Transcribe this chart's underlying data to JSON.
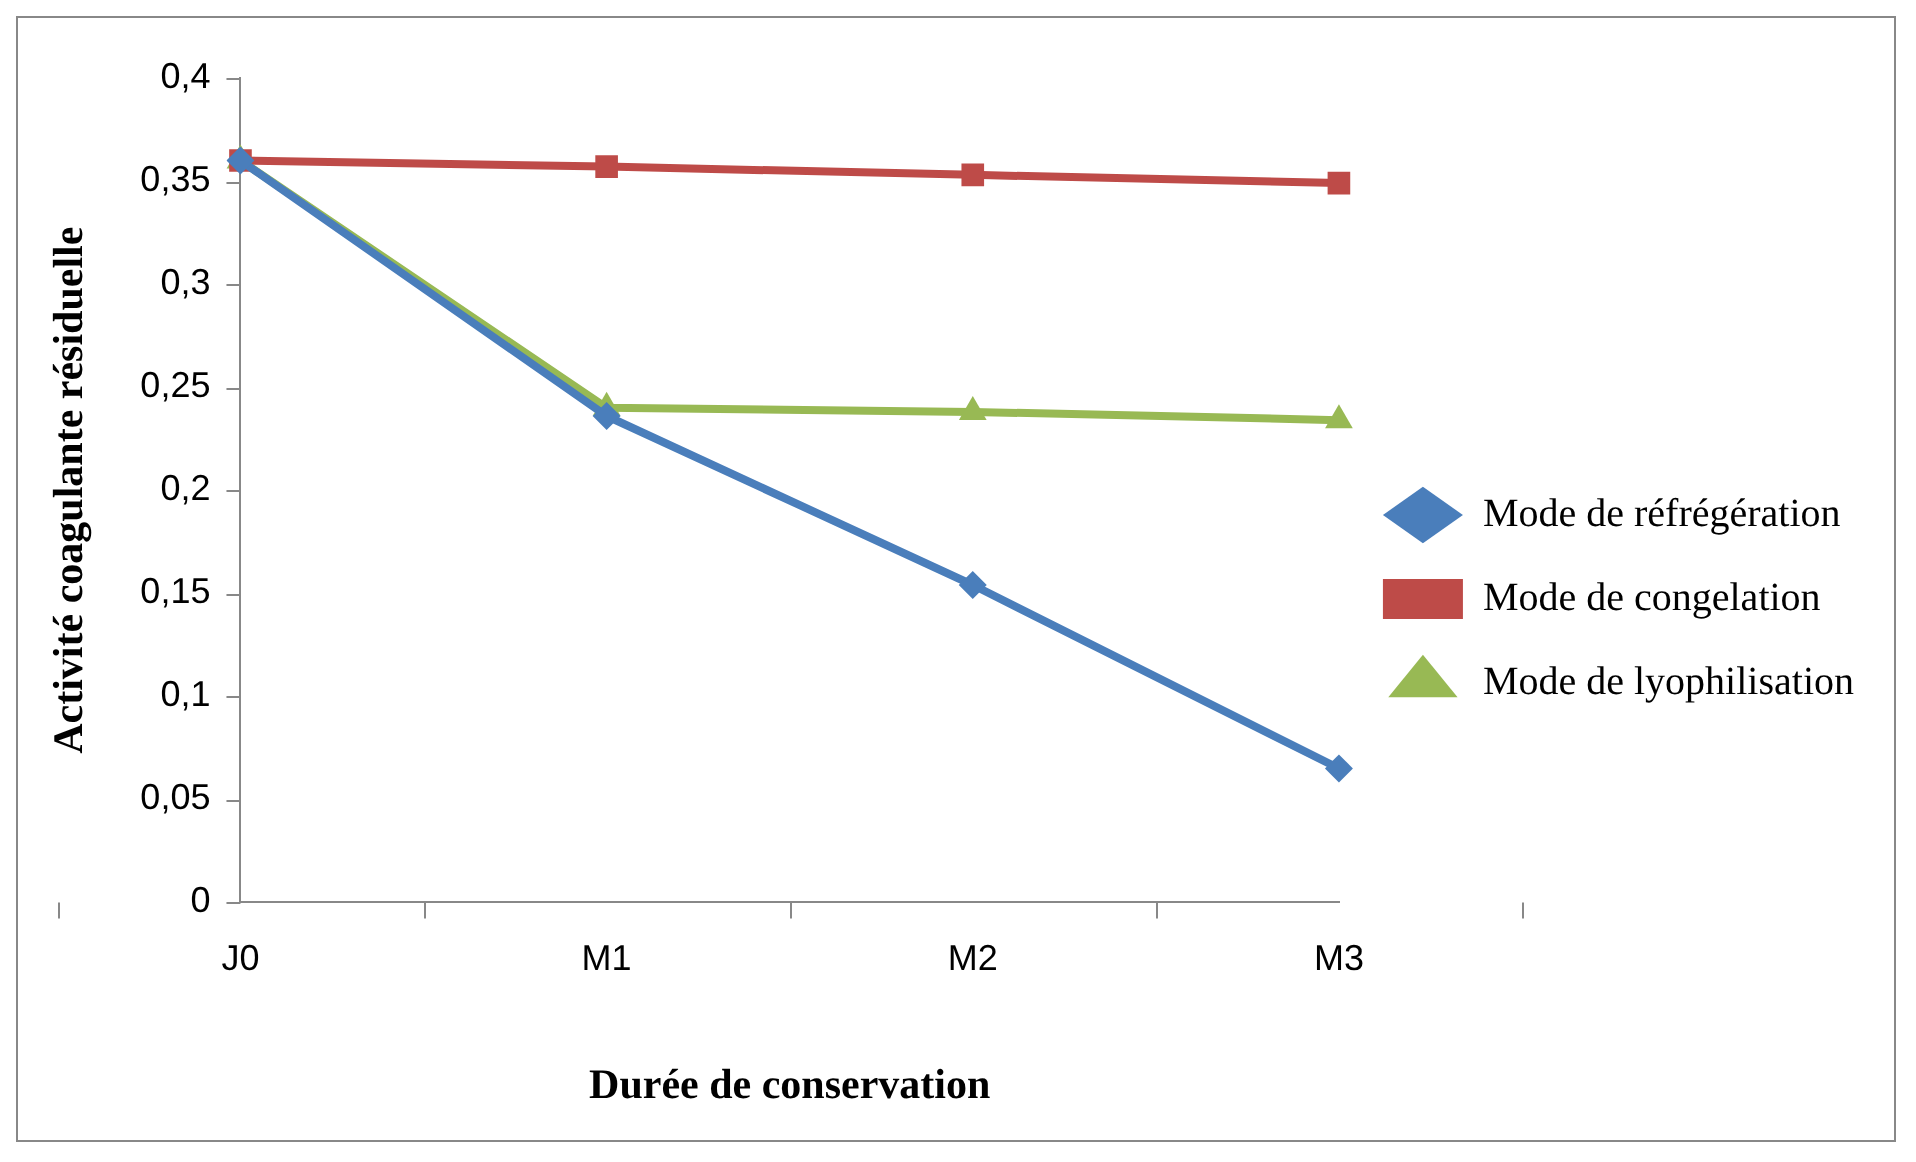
{
  "chart_data": {
    "type": "line",
    "xlabel": "Durée de conservation",
    "ylabel": "Activité coagulante résiduelle",
    "categories": [
      "J0",
      "M1",
      "M2",
      "M3"
    ],
    "series": [
      {
        "name": "Mode de réfrégération",
        "color": "#4a7ebb",
        "marker": "diamond",
        "values": [
          0.36,
          0.236,
          0.154,
          0.065
        ]
      },
      {
        "name": "Mode de congelation",
        "color": "#be4b48",
        "marker": "square",
        "values": [
          0.36,
          0.357,
          0.353,
          0.349
        ]
      },
      {
        "name": "Mode de lyophilisation",
        "color": "#98b954",
        "marker": "triangle",
        "values": [
          0.36,
          0.24,
          0.238,
          0.234
        ]
      }
    ],
    "ylim": [
      0,
      0.4
    ],
    "yticks": [
      0,
      {
        "value": 0.05,
        "label": "0,05"
      },
      {
        "value": 0.1,
        "label": "0,1"
      },
      {
        "value": 0.15,
        "label": "0,15"
      },
      {
        "value": 0.2,
        "label": "0,2"
      },
      {
        "value": 0.25,
        "label": "0,25"
      },
      {
        "value": 0.3,
        "label": "0,3"
      },
      {
        "value": 0.35,
        "label": "0,35"
      },
      {
        "value": 0.4,
        "label": "0,4"
      }
    ],
    "grid": false,
    "legend": "right",
    "line_style": "solid"
  }
}
